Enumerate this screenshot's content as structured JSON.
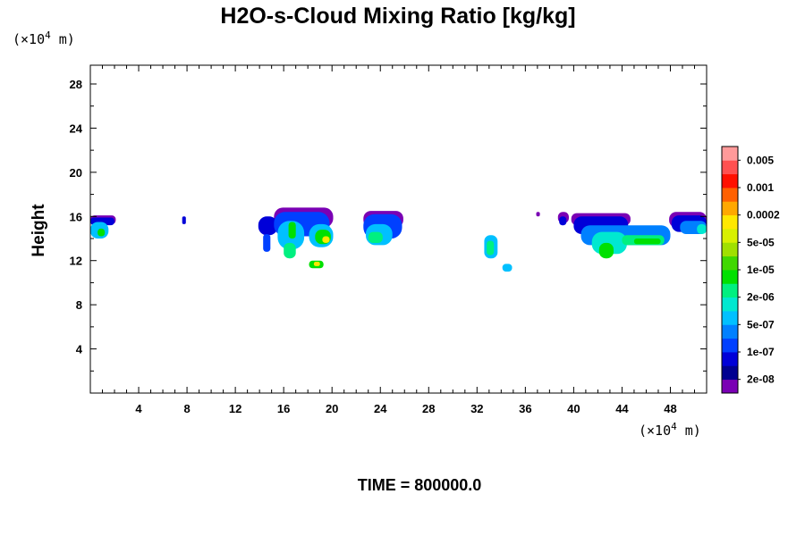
{
  "chart_data": {
    "type": "heatmap",
    "title": "H2O-s-Cloud Mixing Ratio [kg/kg]",
    "ylabel": "Height",
    "xlabel": "",
    "x_unit_prefix": "(×10",
    "x_unit_exp": "4",
    "x_unit_suffix": " m)",
    "y_unit_prefix": "(×10",
    "y_unit_exp": "4",
    "y_unit_suffix": " m)",
    "footer": "TIME = 800000.0",
    "xlim": [
      0,
      51
    ],
    "ylim": [
      0,
      29.7
    ],
    "x_ticks": [
      4,
      8,
      12,
      16,
      20,
      24,
      28,
      32,
      36,
      40,
      44,
      48
    ],
    "y_ticks": [
      4,
      8,
      12,
      16,
      20,
      24,
      28
    ],
    "grid": false,
    "colorbar": {
      "colors": [
        "#7a00b4",
        "#000090",
        "#0000d8",
        "#0040ff",
        "#0080ff",
        "#00c0ff",
        "#00e8d0",
        "#00f080",
        "#00e000",
        "#40d800",
        "#a0e000",
        "#d8f000",
        "#ffe800",
        "#ffa800",
        "#ff6000",
        "#ff1000",
        "#ff5050",
        "#ff9a9a"
      ],
      "labels": [
        "2e-08",
        "1e-07",
        "5e-07",
        "2e-06",
        "1e-05",
        "5e-05",
        "0.0002",
        "0.001",
        "0.005"
      ]
    },
    "cloud_levels": [
      {
        "level": 1,
        "color": "#7a00b4"
      },
      {
        "level": 2,
        "color": "#000090"
      },
      {
        "level": 3,
        "color": "#0000d8"
      },
      {
        "level": 4,
        "color": "#0040ff"
      },
      {
        "level": 5,
        "color": "#0080ff"
      },
      {
        "level": 6,
        "color": "#00c0ff"
      },
      {
        "level": 7,
        "color": "#00e8d0"
      },
      {
        "level": 8,
        "color": "#00f080"
      },
      {
        "level": 9,
        "color": "#00e000"
      },
      {
        "level": 10,
        "color": "#a0e000"
      },
      {
        "level": 11,
        "color": "#ffe800"
      },
      {
        "level": 12,
        "color": "#ff6000"
      }
    ],
    "cells": [
      {
        "x0": 0.0,
        "x1": 2.1,
        "y0": 15.3,
        "y1": 16.1,
        "level": 1
      },
      {
        "x0": 0.0,
        "x1": 2.0,
        "y0": 15.2,
        "y1": 15.9,
        "level": 3
      },
      {
        "x0": 0.0,
        "x1": 1.5,
        "y0": 14.0,
        "y1": 15.5,
        "level": 6
      },
      {
        "x0": 0.6,
        "x1": 1.2,
        "y0": 14.2,
        "y1": 14.9,
        "level": 9
      },
      {
        "x0": 7.6,
        "x1": 7.9,
        "y0": 15.3,
        "y1": 16.0,
        "level": 3
      },
      {
        "x0": 13.9,
        "x1": 15.5,
        "y0": 14.3,
        "y1": 16.0,
        "level": 3
      },
      {
        "x0": 14.3,
        "x1": 14.9,
        "y0": 12.8,
        "y1": 14.4,
        "level": 4
      },
      {
        "x0": 15.2,
        "x1": 20.1,
        "y0": 15.0,
        "y1": 16.8,
        "level": 1
      },
      {
        "x0": 15.2,
        "x1": 19.8,
        "y0": 14.2,
        "y1": 16.4,
        "level": 4
      },
      {
        "x0": 15.5,
        "x1": 17.7,
        "y0": 13.0,
        "y1": 15.6,
        "level": 6
      },
      {
        "x0": 16.0,
        "x1": 17.0,
        "y0": 12.2,
        "y1": 13.6,
        "level": 8
      },
      {
        "x0": 16.4,
        "x1": 17.0,
        "y0": 14.0,
        "y1": 15.5,
        "level": 9
      },
      {
        "x0": 18.1,
        "x1": 20.1,
        "y0": 13.2,
        "y1": 15.3,
        "level": 6
      },
      {
        "x0": 18.6,
        "x1": 19.9,
        "y0": 13.5,
        "y1": 14.8,
        "level": 9
      },
      {
        "x0": 19.2,
        "x1": 19.8,
        "y0": 13.6,
        "y1": 14.2,
        "level": 11
      },
      {
        "x0": 18.1,
        "x1": 19.3,
        "y0": 11.3,
        "y1": 12.0,
        "level": 9
      },
      {
        "x0": 18.5,
        "x1": 19.0,
        "y0": 11.5,
        "y1": 11.9,
        "level": 11
      },
      {
        "x0": 22.6,
        "x1": 25.9,
        "y0": 15.0,
        "y1": 16.5,
        "level": 1
      },
      {
        "x0": 22.6,
        "x1": 25.8,
        "y0": 14.0,
        "y1": 16.2,
        "level": 4
      },
      {
        "x0": 22.8,
        "x1": 25.0,
        "y0": 13.4,
        "y1": 15.3,
        "level": 6
      },
      {
        "x0": 23.0,
        "x1": 24.2,
        "y0": 13.6,
        "y1": 14.6,
        "level": 8
      },
      {
        "x0": 32.6,
        "x1": 33.7,
        "y0": 12.2,
        "y1": 14.3,
        "level": 6
      },
      {
        "x0": 32.8,
        "x1": 33.4,
        "y0": 12.5,
        "y1": 13.8,
        "level": 8
      },
      {
        "x0": 34.1,
        "x1": 34.9,
        "y0": 11.0,
        "y1": 11.7,
        "level": 6
      },
      {
        "x0": 36.9,
        "x1": 37.2,
        "y0": 16.0,
        "y1": 16.4,
        "level": 1
      },
      {
        "x0": 38.7,
        "x1": 39.6,
        "y0": 15.4,
        "y1": 16.4,
        "level": 1
      },
      {
        "x0": 38.8,
        "x1": 39.4,
        "y0": 15.2,
        "y1": 16.0,
        "level": 3
      },
      {
        "x0": 39.8,
        "x1": 44.7,
        "y0": 15.2,
        "y1": 16.3,
        "level": 1
      },
      {
        "x0": 40.0,
        "x1": 44.5,
        "y0": 14.4,
        "y1": 16.0,
        "level": 3
      },
      {
        "x0": 40.6,
        "x1": 48.0,
        "y0": 13.4,
        "y1": 15.2,
        "level": 5
      },
      {
        "x0": 41.5,
        "x1": 44.4,
        "y0": 12.6,
        "y1": 14.6,
        "level": 7
      },
      {
        "x0": 42.1,
        "x1": 43.3,
        "y0": 12.2,
        "y1": 13.6,
        "level": 9
      },
      {
        "x0": 44.0,
        "x1": 47.5,
        "y0": 13.4,
        "y1": 14.3,
        "level": 8
      },
      {
        "x0": 45.0,
        "x1": 47.2,
        "y0": 13.5,
        "y1": 14.0,
        "level": 9
      },
      {
        "x0": 47.9,
        "x1": 51.0,
        "y0": 15.0,
        "y1": 16.4,
        "level": 1
      },
      {
        "x0": 48.1,
        "x1": 51.0,
        "y0": 14.6,
        "y1": 16.1,
        "level": 3
      },
      {
        "x0": 48.8,
        "x1": 51.0,
        "y0": 14.4,
        "y1": 15.6,
        "level": 5
      },
      {
        "x0": 50.2,
        "x1": 51.0,
        "y0": 14.4,
        "y1": 15.3,
        "level": 7
      }
    ]
  }
}
